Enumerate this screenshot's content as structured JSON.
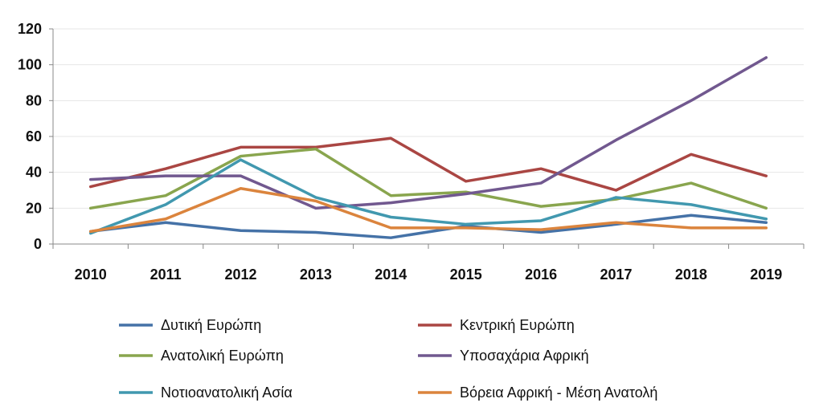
{
  "chart_data": {
    "type": "line",
    "x": [
      "2010",
      "2011",
      "2012",
      "2013",
      "2014",
      "2015",
      "2016",
      "2017",
      "2018",
      "2019"
    ],
    "ylim": [
      0,
      120
    ],
    "yticks": [
      0,
      20,
      40,
      60,
      80,
      100,
      120
    ],
    "grid": "horizontal",
    "legend_position": "bottom",
    "series": [
      {
        "name": "Δυτική Ευρώπη",
        "color": "#4572A7",
        "values": [
          7,
          12,
          7.5,
          6.5,
          3.5,
          10,
          6.5,
          11,
          16,
          12
        ]
      },
      {
        "name": "Κεντρική Ευρώπη",
        "color": "#AA4643",
        "values": [
          32,
          42,
          54,
          54,
          59,
          35,
          42,
          30,
          50,
          38
        ]
      },
      {
        "name": "Ανατολική Ευρώπη",
        "color": "#89A54E",
        "values": [
          20,
          27,
          49,
          53,
          27,
          29,
          21,
          25,
          34,
          20
        ]
      },
      {
        "name": "Υποσαχάρια Αφρική",
        "color": "#71588F",
        "values": [
          36,
          38,
          38,
          20,
          23,
          28,
          34,
          58,
          80,
          104
        ]
      },
      {
        "name": "Νοτιοανατολική Ασία",
        "color": "#4198AF",
        "values": [
          6,
          22,
          47,
          26,
          15,
          11,
          13,
          26,
          22,
          14
        ]
      },
      {
        "name": "Βόρεια Αφρική - Μέση Ανατολή",
        "color": "#DB843D",
        "values": [
          7,
          14,
          31,
          24,
          9,
          9,
          8,
          12,
          9,
          9
        ]
      }
    ]
  }
}
